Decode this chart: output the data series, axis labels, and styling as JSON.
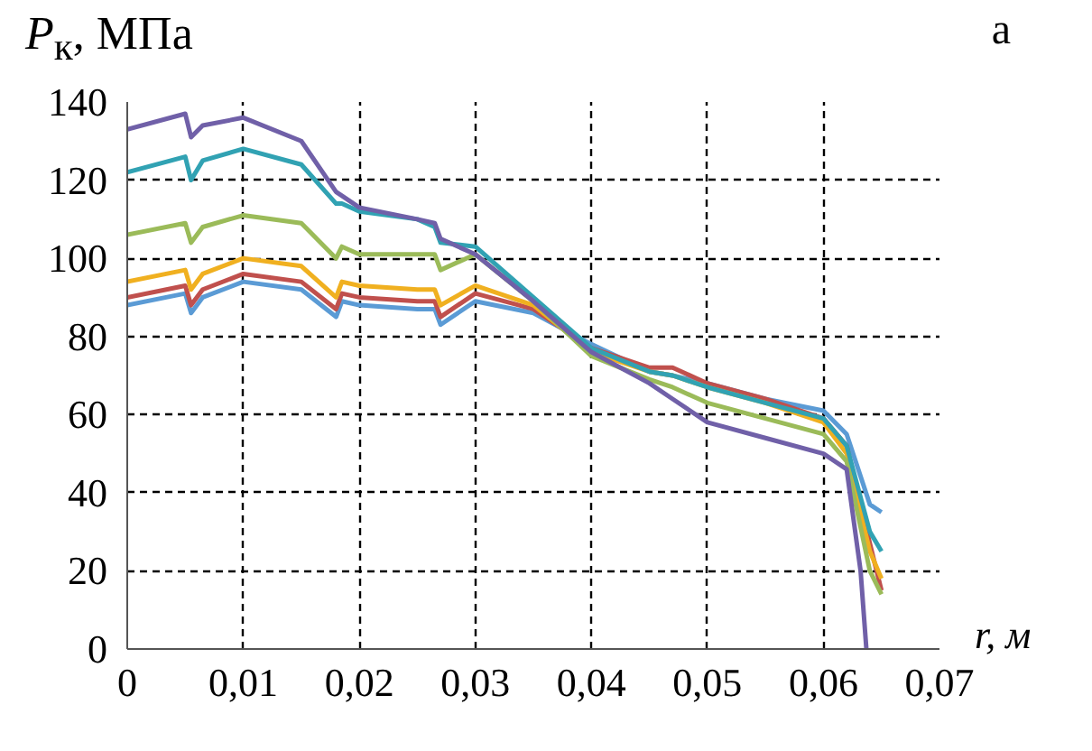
{
  "chart_data": {
    "type": "line",
    "ylabel": "P$_{к}$, МПа",
    "xlabel": "r, м",
    "annotations": [
      "а"
    ],
    "x": [
      0,
      0.005,
      0.0055,
      0.0065,
      0.01,
      0.015,
      0.018,
      0.0185,
      0.02,
      0.025,
      0.0265,
      0.027,
      0.03,
      0.035,
      0.04,
      0.045,
      0.047,
      0.05,
      0.055,
      0.06,
      0.062,
      0.064,
      0.065
    ],
    "xlim": [
      0,
      0.07
    ],
    "ylim": [
      0,
      140
    ],
    "xticks": [
      {
        "value": 0,
        "label": "0"
      },
      {
        "value": 0.01,
        "label": "0,01"
      },
      {
        "value": 0.02,
        "label": "0,02"
      },
      {
        "value": 0.03,
        "label": "0,03"
      },
      {
        "value": 0.04,
        "label": "0,04"
      },
      {
        "value": 0.05,
        "label": "0,05"
      },
      {
        "value": 0.06,
        "label": "0,06"
      },
      {
        "value": 0.07,
        "label": "0,07"
      }
    ],
    "yticks": [
      0,
      20,
      40,
      60,
      80,
      100,
      120,
      140
    ],
    "grid": true,
    "marker": "none",
    "line_style": "solid",
    "series": [
      {
        "color": "#5b9bd5",
        "values": [
          88,
          91,
          86,
          90,
          94,
          92,
          85,
          89,
          88,
          87,
          87,
          83,
          89,
          86,
          78,
          71,
          70,
          68,
          64,
          61,
          55,
          37,
          35
        ]
      },
      {
        "color": "#c0504d",
        "values": [
          90,
          93,
          88,
          92,
          96,
          94,
          87,
          91,
          90,
          89,
          89,
          85,
          91,
          87,
          77,
          72,
          72,
          68,
          64,
          59,
          52,
          27,
          15
        ]
      },
      {
        "color": "#f0b020",
        "values": [
          94,
          97,
          92,
          96,
          100,
          98,
          90,
          94,
          93,
          92,
          92,
          88,
          93,
          88,
          76,
          71,
          70,
          67,
          63,
          58,
          50,
          25,
          18
        ]
      },
      {
        "color": "#9bbb59",
        "values": [
          106,
          109,
          104,
          108,
          111,
          109,
          100,
          103,
          101,
          101,
          101,
          97,
          101,
          89,
          75,
          69,
          67,
          63,
          59,
          55,
          48,
          20,
          14
        ]
      },
      {
        "color": "#31a2b3",
        "values": [
          122,
          126,
          120,
          125,
          128,
          124,
          114,
          114,
          112,
          110,
          108,
          104,
          103,
          90,
          77,
          71,
          70,
          67,
          63,
          59,
          52,
          30,
          25
        ]
      },
      {
        "color": "#7060a8",
        "x": [
          0,
          0.005,
          0.0055,
          0.0065,
          0.01,
          0.015,
          0.018,
          0.0185,
          0.02,
          0.025,
          0.0265,
          0.027,
          0.03,
          0.035,
          0.04,
          0.045,
          0.047,
          0.05,
          0.055,
          0.06,
          0.062,
          0.0632,
          0.0637
        ],
        "values": [
          133,
          137,
          131,
          134,
          136,
          130,
          117,
          116,
          113,
          110,
          109,
          105,
          101,
          89,
          76,
          68,
          64,
          58,
          54,
          50,
          46,
          20,
          0
        ]
      }
    ]
  }
}
